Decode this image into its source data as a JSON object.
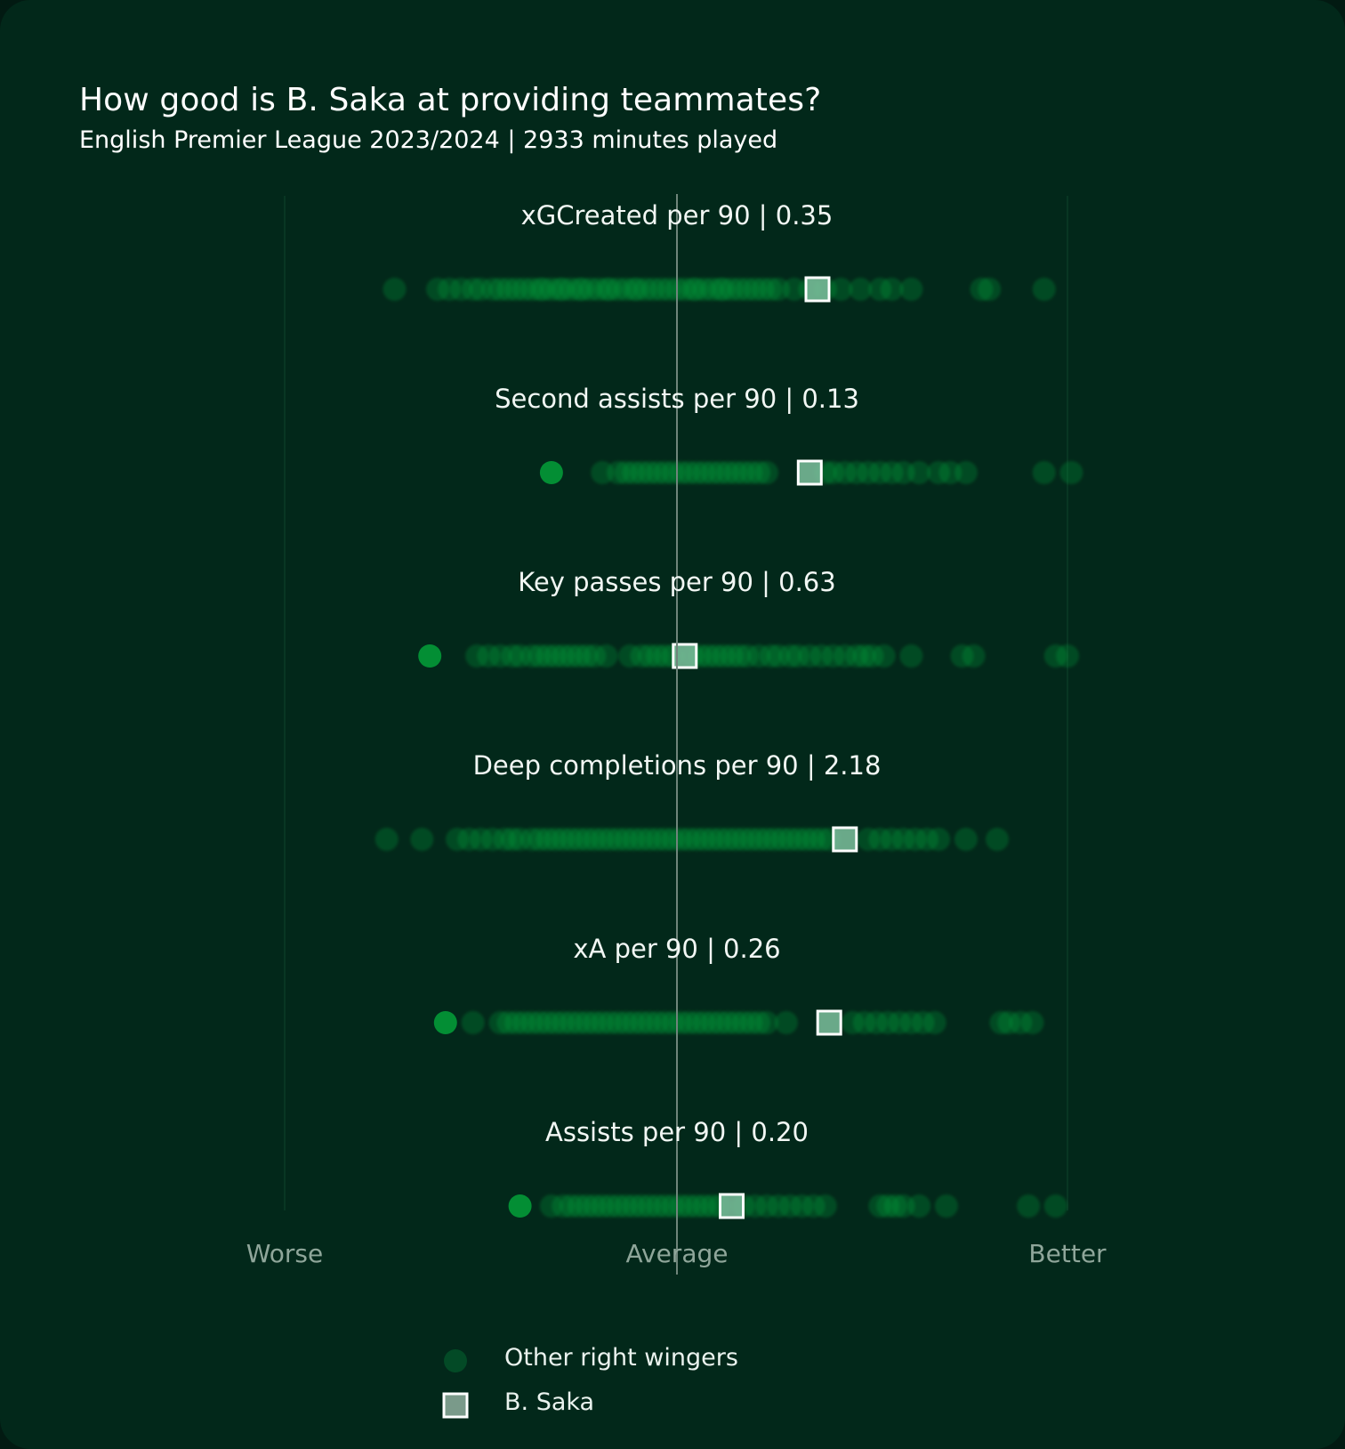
{
  "title": "How good is B. Saka at providing teammates?",
  "subtitle": "English Premier League 2023/2024 | 2933 minutes played",
  "colors": {
    "background": "#02281a",
    "other_dot": "#03a03a",
    "saka_fill": "#7cbf9e",
    "saka_stroke": "#ffffff",
    "guide_line": "#6f857b",
    "scale_label": "#8fa69a"
  },
  "chart_data": {
    "type": "scatter",
    "x_scale": {
      "label_left": "Worse",
      "label_mid": "Average",
      "label_right": "Better",
      "xlim": [
        -1,
        1
      ]
    },
    "legend": {
      "placement": "bottom-center",
      "other_label": "Other right wingers",
      "player_label": "B. Saka"
    },
    "rows": [
      {
        "label": "xGCreated per 90 | 0.35",
        "player_score": 0.36,
        "others": [
          -0.72,
          -0.61,
          -0.58,
          -0.55,
          -0.52,
          -0.5,
          -0.47,
          -0.45,
          -0.43,
          -0.41,
          -0.39,
          -0.37,
          -0.35,
          -0.34,
          -0.32,
          -0.3,
          -0.29,
          -0.27,
          -0.25,
          -0.24,
          -0.22,
          -0.2,
          -0.18,
          -0.17,
          -0.15,
          -0.13,
          -0.11,
          -0.1,
          -0.08,
          -0.06,
          -0.04,
          -0.02,
          0,
          0.02,
          0.04,
          0.05,
          0.07,
          0.09,
          0.11,
          0.12,
          0.14,
          0.16,
          0.18,
          0.2,
          0.22,
          0.24,
          0.26,
          0.3,
          0.34,
          0.38,
          0.42,
          0.47,
          0.52,
          0.55,
          0.6,
          0.78,
          0.8,
          0.94
        ]
      },
      {
        "label": "Second assists per 90 | 0.13",
        "player_score": 0.34,
        "others": [
          -0.32,
          -0.19,
          -0.15,
          -0.13,
          -0.11,
          -0.09,
          -0.07,
          -0.05,
          -0.03,
          -0.01,
          0.01,
          0.03,
          0.05,
          0.07,
          0.09,
          0.11,
          0.13,
          0.15,
          0.17,
          0.19,
          0.21,
          0.23,
          0.38,
          0.4,
          0.43,
          0.46,
          0.49,
          0.52,
          0.55,
          0.58,
          0.62,
          0.67,
          0.7,
          0.74,
          0.94,
          1.01
        ]
      },
      {
        "label": "Key passes per 90 | 0.63",
        "player_score": 0.02,
        "others": [
          -0.63,
          -0.51,
          -0.48,
          -0.45,
          -0.42,
          -0.4,
          -0.37,
          -0.35,
          -0.33,
          -0.31,
          -0.29,
          -0.27,
          -0.25,
          -0.23,
          -0.21,
          -0.18,
          -0.12,
          -0.09,
          -0.07,
          -0.05,
          -0.03,
          -0.01,
          0.04,
          0.06,
          0.08,
          0.1,
          0.12,
          0.14,
          0.16,
          0.18,
          0.21,
          0.24,
          0.26,
          0.29,
          0.31,
          0.34,
          0.37,
          0.4,
          0.43,
          0.46,
          0.48,
          0.5,
          0.53,
          0.6,
          0.73,
          0.76,
          0.97,
          1
        ]
      },
      {
        "label": "Deep completions per 90 | 2.18",
        "player_score": 0.43,
        "others": [
          -0.74,
          -0.65,
          -0.56,
          -0.53,
          -0.5,
          -0.47,
          -0.44,
          -0.42,
          -0.4,
          -0.37,
          -0.35,
          -0.33,
          -0.31,
          -0.29,
          -0.27,
          -0.25,
          -0.23,
          -0.21,
          -0.19,
          -0.17,
          -0.15,
          -0.13,
          -0.11,
          -0.09,
          -0.07,
          -0.05,
          -0.03,
          -0.01,
          0.01,
          0.03,
          0.05,
          0.07,
          0.09,
          0.11,
          0.13,
          0.15,
          0.17,
          0.19,
          0.21,
          0.23,
          0.25,
          0.27,
          0.29,
          0.31,
          0.33,
          0.35,
          0.37,
          0.39,
          0.49,
          0.52,
          0.55,
          0.58,
          0.61,
          0.64,
          0.67,
          0.74,
          0.82
        ]
      },
      {
        "label": "xA per 90 | 0.26",
        "player_score": 0.39,
        "others": [
          -0.59,
          -0.52,
          -0.45,
          -0.43,
          -0.41,
          -0.39,
          -0.37,
          -0.35,
          -0.33,
          -0.31,
          -0.29,
          -0.27,
          -0.25,
          -0.23,
          -0.21,
          -0.19,
          -0.17,
          -0.15,
          -0.13,
          -0.11,
          -0.09,
          -0.07,
          -0.05,
          -0.03,
          -0.01,
          0.01,
          0.03,
          0.05,
          0.07,
          0.09,
          0.11,
          0.13,
          0.15,
          0.17,
          0.19,
          0.21,
          0.23,
          0.28,
          0.45,
          0.48,
          0.51,
          0.54,
          0.57,
          0.6,
          0.63,
          0.66,
          0.83,
          0.85,
          0.88,
          0.91
        ]
      },
      {
        "label": "Assists per 90 | 0.20",
        "player_score": 0.14,
        "others": [
          -0.4,
          -0.32,
          -0.29,
          -0.27,
          -0.25,
          -0.23,
          -0.21,
          -0.19,
          -0.17,
          -0.15,
          -0.13,
          -0.11,
          -0.09,
          -0.07,
          -0.05,
          -0.03,
          -0.01,
          0.01,
          0.03,
          0.05,
          0.07,
          0.09,
          0.11,
          0.17,
          0.2,
          0.23,
          0.26,
          0.29,
          0.32,
          0.35,
          0.38,
          0.52,
          0.54,
          0.56,
          0.58,
          0.62,
          0.69,
          0.9,
          0.97
        ]
      }
    ]
  }
}
